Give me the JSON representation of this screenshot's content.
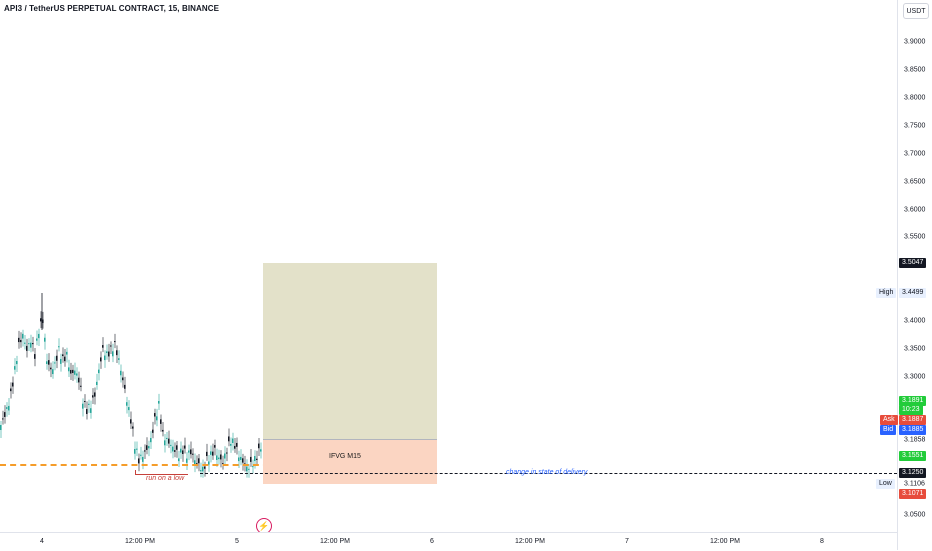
{
  "header": {
    "title": "API3 / TetherUS PERPETUAL CONTRACT, 15, BINANCE"
  },
  "currency_button": "USDT",
  "price_axis": {
    "ticks": [
      "3.9000",
      "3.8500",
      "3.8000",
      "3.7500",
      "3.7000",
      "3.6500",
      "3.6000",
      "3.5500",
      "3.4000",
      "3.3500",
      "3.3000",
      "3.1858",
      "3.1106",
      "3.0500"
    ],
    "tags": {
      "target": "3.5047",
      "high_label": "High",
      "high_value": "3.4499",
      "last_price": "3.1891",
      "countdown": "10:23",
      "ask_label": "Ask",
      "ask_value": "3.1887",
      "bid_label": "Bid",
      "bid_value": "3.1885",
      "green_level": "3.1551",
      "level": "3.1250",
      "low_label": "Low",
      "stop": "3.1071"
    }
  },
  "time_axis": {
    "labels": [
      "4",
      "12:00 PM",
      "5",
      "12:00 PM",
      "6",
      "12:00 PM",
      "7",
      "12:00 PM",
      "8"
    ]
  },
  "annotations": {
    "run_on_low": "run on a low",
    "change_state": "change in state of delivery",
    "ifvg": "IFVG M15"
  },
  "colors": {
    "up": "#26a69a",
    "down": "#131722",
    "accent_green": "#22ab3f",
    "accent_red": "#e74c3c",
    "accent_blue": "#2962ff"
  }
}
